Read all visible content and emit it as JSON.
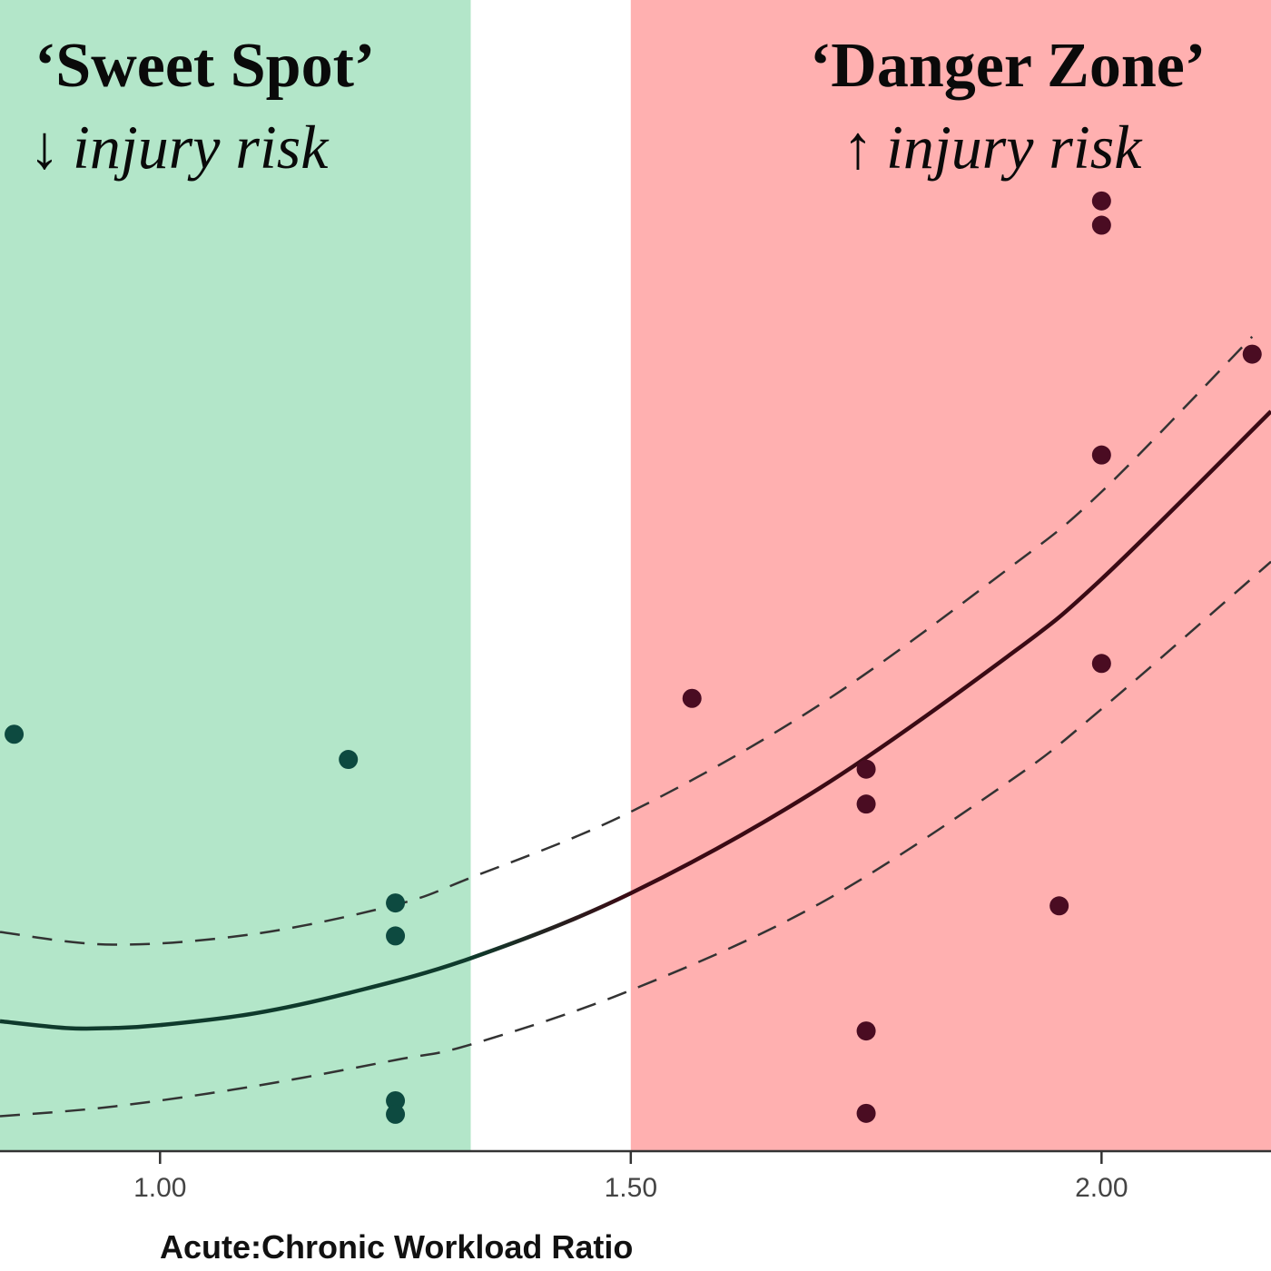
{
  "annotations": {
    "sweet_spot": {
      "title": "‘Sweet Spot’",
      "arrow": "↓",
      "text": "injury risk"
    },
    "danger_zone": {
      "title": "‘Danger Zone’",
      "arrow": "↑",
      "text": "injury risk"
    }
  },
  "colors": {
    "sweet_zone": "#b3e6c9",
    "middle_zone": "#ffffff",
    "danger_zone": "#ffb0b0",
    "points_sweet": "#0d4a40",
    "points_danger": "#4a0c22",
    "fit_sweet": "#0f3a2c",
    "fit_danger": "#3a0a14",
    "ci_line": "#333333",
    "axis": "#333333"
  },
  "chart_data": {
    "type": "scatter",
    "title": "",
    "xlabel": "Acute:Chronic Workload Ratio",
    "ylabel": "",
    "xlim": [
      0.83,
      2.18
    ],
    "ylim": [
      0,
      1
    ],
    "x_ticks": [
      "1.00",
      "1.50",
      "2.00"
    ],
    "x_tick_values": [
      1.0,
      1.5,
      2.0
    ],
    "zones": [
      {
        "label": "‘Sweet Spot’",
        "from": 0.83,
        "to": 1.33
      },
      {
        "label": "",
        "from": 1.33,
        "to": 1.5
      },
      {
        "label": "‘Danger Zone’",
        "from": 1.5,
        "to": 2.18
      }
    ],
    "points": [
      {
        "x": 0.845,
        "y": 0.43
      },
      {
        "x": 1.2,
        "y": 0.404
      },
      {
        "x": 1.25,
        "y": 0.256
      },
      {
        "x": 1.25,
        "y": 0.222
      },
      {
        "x": 1.25,
        "y": 0.052
      },
      {
        "x": 1.25,
        "y": 0.038
      },
      {
        "x": 1.565,
        "y": 0.467
      },
      {
        "x": 1.75,
        "y": 0.394
      },
      {
        "x": 1.75,
        "y": 0.358
      },
      {
        "x": 1.75,
        "y": 0.124
      },
      {
        "x": 1.75,
        "y": 0.039
      },
      {
        "x": 1.955,
        "y": 0.253
      },
      {
        "x": 2.0,
        "y": 0.98
      },
      {
        "x": 2.0,
        "y": 0.955
      },
      {
        "x": 2.0,
        "y": 0.718
      },
      {
        "x": 2.0,
        "y": 0.503
      },
      {
        "x": 2.16,
        "y": 0.822
      }
    ],
    "fit": {
      "x": [
        0.83,
        0.9,
        0.95,
        1.0,
        1.1,
        1.2,
        1.33,
        1.5,
        1.7,
        1.9,
        2.0,
        2.18
      ],
      "y": [
        0.134,
        0.127,
        0.127,
        0.13,
        0.142,
        0.163,
        0.199,
        0.266,
        0.374,
        0.51,
        0.59,
        0.763
      ]
    },
    "ci_upper": {
      "x": [
        0.83,
        0.95,
        1.1,
        1.25,
        1.33,
        1.5,
        1.7,
        1.9,
        2.0,
        2.16
      ],
      "y": [
        0.226,
        0.213,
        0.224,
        0.254,
        0.282,
        0.35,
        0.46,
        0.6,
        0.68,
        0.84
      ]
    },
    "ci_lower": {
      "x": [
        0.83,
        0.95,
        1.1,
        1.25,
        1.33,
        1.5,
        1.7,
        1.9,
        2.0,
        2.18
      ],
      "y": [
        0.036,
        0.046,
        0.067,
        0.094,
        0.11,
        0.166,
        0.255,
        0.38,
        0.456,
        0.608
      ]
    }
  }
}
